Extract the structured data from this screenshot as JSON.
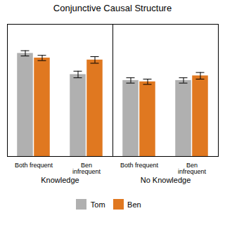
{
  "chart_data": {
    "type": "bar",
    "title": "Conjunctive Causal Structure",
    "categories": [
      "Both frequent",
      "Ben\ninfrequent",
      "Both frequent",
      "Ben\ninfrequent"
    ],
    "category_groups": [
      "Knowledge",
      "Knowledge",
      "No Knowledge",
      "No Knowledge"
    ],
    "series": [
      {
        "name": "Tom",
        "color": "#b0b0b0",
        "values": [
          7.8,
          6.2,
          5.75,
          5.75
        ],
        "errors": [
          0.2,
          0.25,
          0.2,
          0.2
        ]
      },
      {
        "name": "Ben",
        "color": "#e07820",
        "values": [
          7.45,
          7.3,
          5.65,
          6.1
        ],
        "errors": [
          0.2,
          0.25,
          0.2,
          0.25
        ]
      }
    ],
    "ylim": [
      0,
      10
    ],
    "yticks": [],
    "tick_labels": "x",
    "grid": false,
    "legend": "bottom"
  }
}
